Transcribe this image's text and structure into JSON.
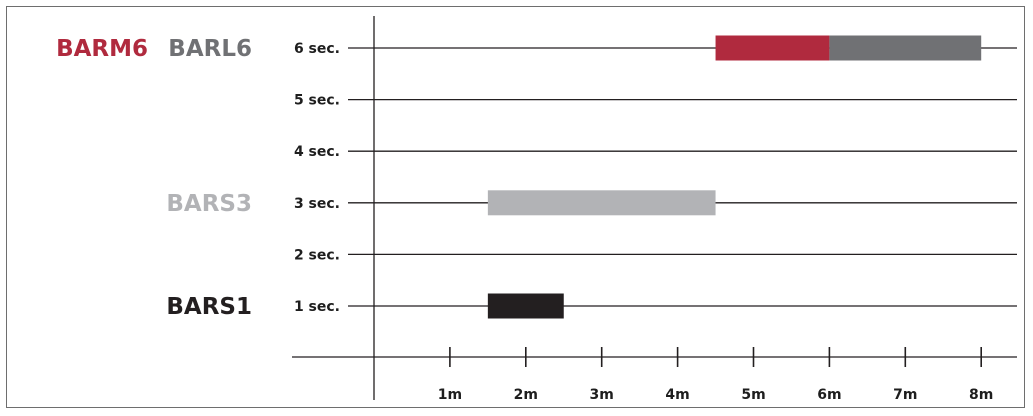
{
  "chart_data": {
    "type": "bar",
    "orientation": "horizontal-range",
    "y_ticks": [
      {
        "value": 1,
        "label": "1 sec."
      },
      {
        "value": 2,
        "label": "2 sec."
      },
      {
        "value": 3,
        "label": "3 sec."
      },
      {
        "value": 4,
        "label": "4 sec."
      },
      {
        "value": 5,
        "label": "5 sec."
      },
      {
        "value": 6,
        "label": "6 sec."
      }
    ],
    "x_ticks": [
      {
        "value": 1,
        "label": "1m"
      },
      {
        "value": 2,
        "label": "2m"
      },
      {
        "value": 3,
        "label": "3m"
      },
      {
        "value": 4,
        "label": "4m"
      },
      {
        "value": 5,
        "label": "5m"
      },
      {
        "value": 6,
        "label": "6m"
      },
      {
        "value": 7,
        "label": "7m"
      },
      {
        "value": 8,
        "label": "8m"
      }
    ],
    "xlim": [
      0,
      8.5
    ],
    "ylim": [
      0,
      6.5
    ],
    "grid": "horizontal",
    "series": [
      {
        "name": "BARS1",
        "y": 1,
        "x_start": 1.5,
        "x_end": 2.5,
        "color": "#231f20"
      },
      {
        "name": "BARS3",
        "y": 3,
        "x_start": 1.5,
        "x_end": 4.5,
        "color": "#b2b3b6"
      },
      {
        "name": "BARM6",
        "y": 6,
        "x_start": 4.5,
        "x_end": 6.0,
        "color": "#b02a3e"
      },
      {
        "name": "BARL6",
        "y": 6,
        "x_start": 6.0,
        "x_end": 8.0,
        "color": "#707174"
      }
    ],
    "series_labels": [
      {
        "text": "BARS1",
        "color": "#231f20",
        "row": 1,
        "slot": 0
      },
      {
        "text": "BARS3",
        "color": "#b2b3b6",
        "row": 3,
        "slot": 0
      },
      {
        "text": "BARM6",
        "color": "#b02a3e",
        "row": 6,
        "slot": 1
      },
      {
        "text": "BARL6",
        "color": "#707174",
        "row": 6,
        "slot": 0
      }
    ],
    "axis_color": "#231f20",
    "title": "",
    "xlabel": "",
    "ylabel": ""
  }
}
